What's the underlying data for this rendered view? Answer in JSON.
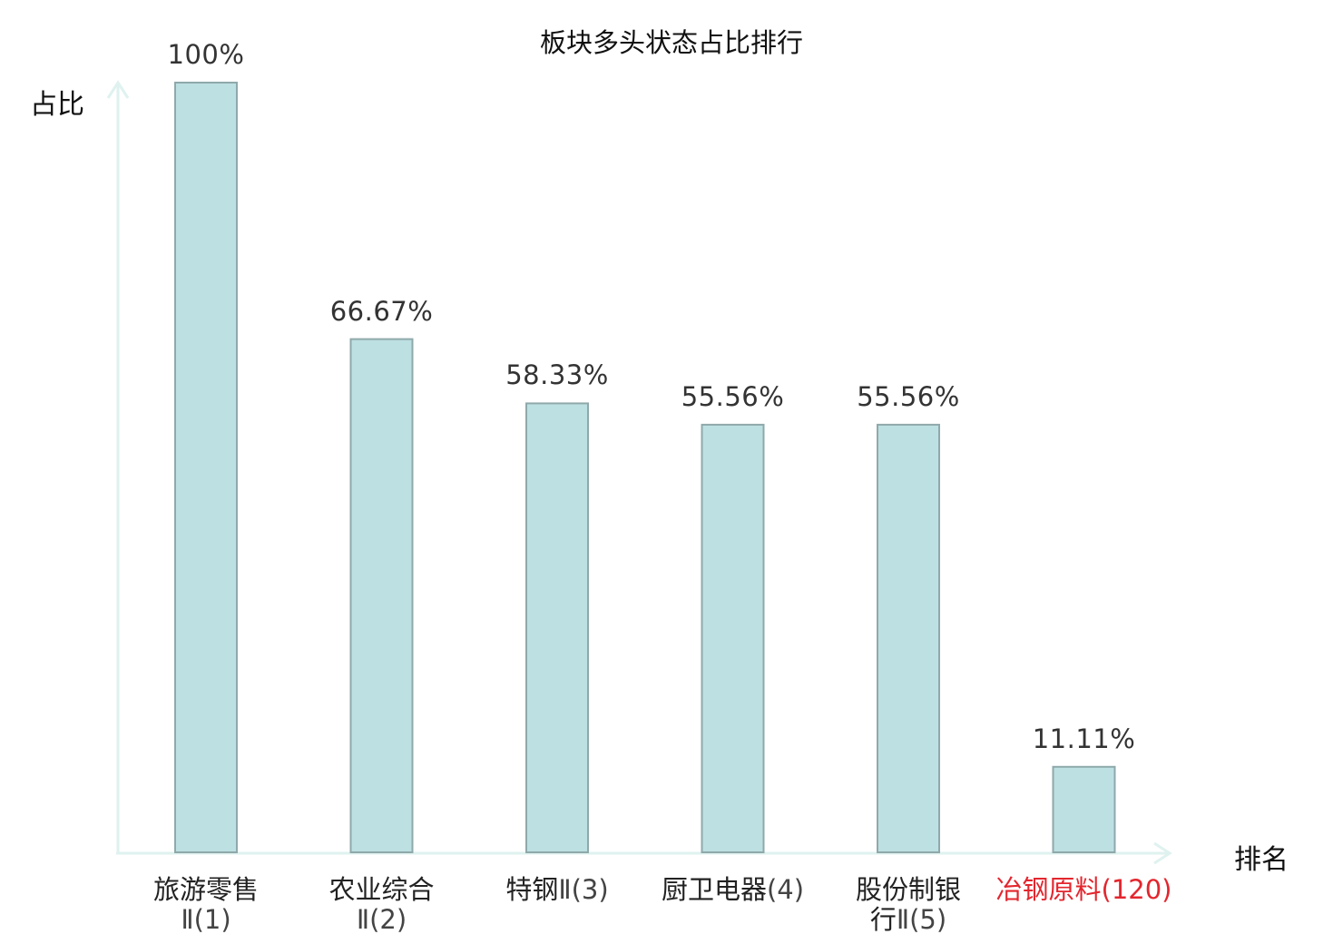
{
  "chart_data": {
    "type": "bar",
    "title": "板块多头状态占比排行",
    "ylabel": "占比",
    "xlabel": "排名",
    "ylim": [
      0,
      100
    ],
    "grid": false,
    "categories": [
      {
        "lines": [
          {
            "name": "旅游零售",
            "suffix": ""
          },
          {
            "name": "",
            "suffix": "Ⅱ(1)"
          }
        ],
        "highlight": false
      },
      {
        "lines": [
          {
            "name": "农业综合",
            "suffix": ""
          },
          {
            "name": "",
            "suffix": "Ⅱ(2)"
          }
        ],
        "highlight": false
      },
      {
        "lines": [
          {
            "name": "特钢",
            "suffix": "Ⅱ(3)"
          }
        ],
        "highlight": false
      },
      {
        "lines": [
          {
            "name": "厨卫电器",
            "suffix": "(4)"
          }
        ],
        "highlight": false
      },
      {
        "lines": [
          {
            "name": "股份制银",
            "suffix": ""
          },
          {
            "name": "行",
            "suffix": "Ⅱ(5)"
          }
        ],
        "highlight": false
      },
      {
        "lines": [
          {
            "name": "冶钢原料",
            "suffix": "(120)"
          }
        ],
        "highlight": true
      }
    ],
    "values": [
      100,
      66.67,
      58.33,
      55.56,
      55.56,
      11.11
    ],
    "value_labels": [
      "100%",
      "66.67%",
      "58.33%",
      "55.56%",
      "55.56%",
      "11.11%"
    ]
  },
  "colors": {
    "bar_fill": "#bde0e2",
    "bar_stroke": "#8fa9ab",
    "axis": "#dff2ef",
    "highlight_text": "#e3262e"
  }
}
